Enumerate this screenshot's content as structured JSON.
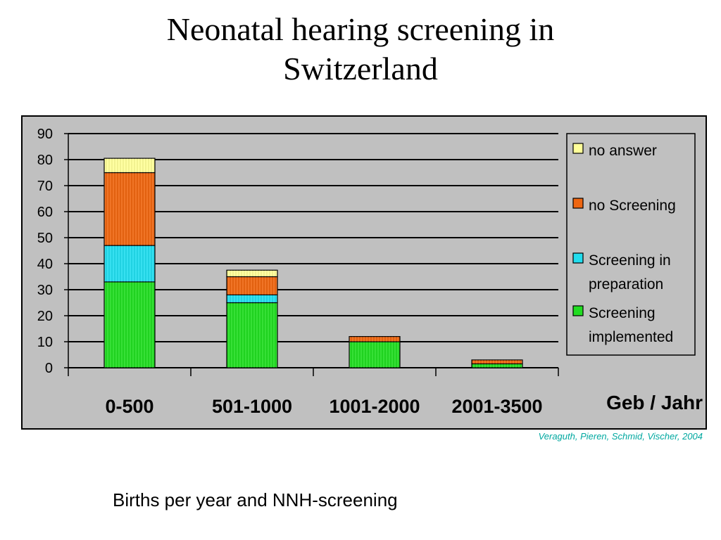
{
  "slide": {
    "title_line1": "Neonatal hearing screening in",
    "title_line2": "Switzerland",
    "credit": "Veraguth, Pieren, Schmid, Vischer, 2004",
    "caption": "Births per year and NNH-screening",
    "credit_color": "#00A8A0"
  },
  "chart_data": {
    "type": "bar",
    "stacked": true,
    "categories": [
      "0-500",
      "501-1000",
      "1001-2000",
      "2001-3500"
    ],
    "series": [
      {
        "name": "Screening implemented",
        "values": [
          33,
          25,
          10,
          1.5
        ],
        "color": "#22DD22"
      },
      {
        "name": "Screening in preparation",
        "values": [
          14,
          3,
          0,
          0
        ],
        "color": "#22DDEE"
      },
      {
        "name": "no Screening",
        "values": [
          28,
          7,
          2,
          1.5
        ],
        "color": "#EE6611"
      },
      {
        "name": "no answer",
        "values": [
          5.5,
          2.5,
          0,
          0
        ],
        "color": "#FFFF99"
      }
    ],
    "legend_order": [
      "no answer",
      "no Screening",
      "Screening in preparation",
      "Screening implemented"
    ],
    "legend_position": "right",
    "xlabel": "Geb / Jahr",
    "ylabel": "",
    "ylim": [
      0,
      90
    ],
    "yticks": [
      0,
      10,
      20,
      30,
      40,
      50,
      60,
      70,
      80,
      90
    ],
    "grid": true,
    "plot_background": "#C0C0C0"
  }
}
